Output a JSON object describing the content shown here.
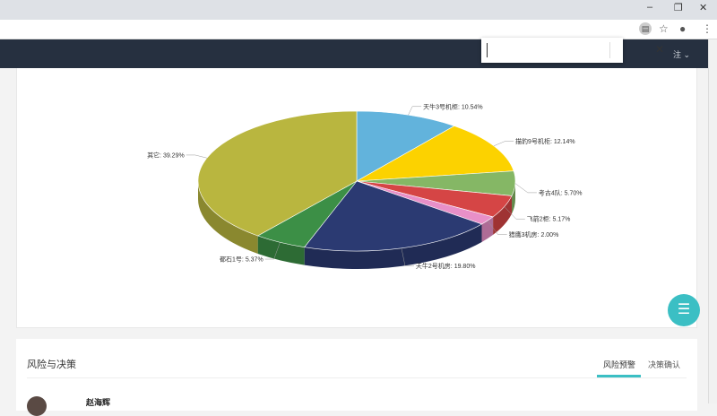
{
  "browser": {
    "minimize": "–",
    "restore": "❐",
    "close": "✕",
    "icons": [
      "page-icon",
      "star-icon",
      "account-icon",
      "menu-icon"
    ]
  },
  "nav": {
    "user_label": "注 ⌄"
  },
  "find": {
    "value": "",
    "close": "✕"
  },
  "chart_data": {
    "type": "pie",
    "style": "3d",
    "slices": [
      {
        "label": "天牛3号机柜",
        "value": 10.54,
        "color": "#62b3dc"
      },
      {
        "label": "描豹9号机柜",
        "value": 12.14,
        "color": "#fcd200"
      },
      {
        "label": "考古4队",
        "value": 5.7,
        "color": "#85b765"
      },
      {
        "label": "飞箭2柜",
        "value": 5.17,
        "color": "#d54545"
      },
      {
        "label": "猎鹰3机房",
        "value": 2.0,
        "color": "#e890c8"
      },
      {
        "label": "天牛2号机房",
        "value": 19.8,
        "color": "#2b3a72"
      },
      {
        "label": "都石1号",
        "value": 5.37,
        "color": "#3c8f46"
      },
      {
        "label": "其它",
        "value": 39.29,
        "color": "#b9b63f"
      }
    ]
  },
  "risk": {
    "title": "风险与决策",
    "tabs": [
      "风险预警",
      "决策确认"
    ],
    "user": "赵海辉"
  },
  "fab": {
    "icon": "menu-icon",
    "glyph": "☰"
  }
}
